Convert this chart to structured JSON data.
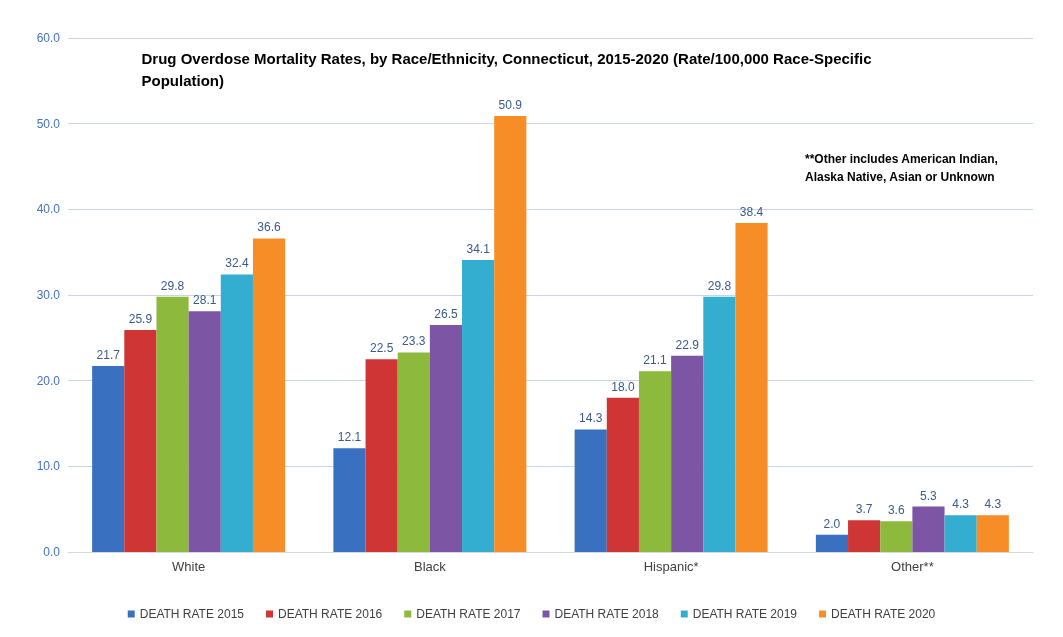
{
  "chart_data": {
    "type": "bar",
    "title": "Drug Overdose Mortality Rates, by Race/Ethnicity, Connecticut, 2015-2020 (Rate/100,000 Race-Specific Population)",
    "annotations": [
      "**Other includes American Indian, Alaska Native, Asian or Unknown"
    ],
    "categories": [
      "White",
      "Black",
      "Hispanic*",
      "Other**"
    ],
    "series": [
      {
        "name": "DEATH RATE 2015",
        "color": "#3a70c0",
        "values": [
          21.7,
          12.1,
          14.3,
          2.0
        ],
        "value_labels": [
          "21.7",
          "12.1",
          "14.3",
          "2.0"
        ]
      },
      {
        "name": "DEATH RATE 2016",
        "color": "#d03535",
        "values": [
          25.9,
          22.5,
          18.0,
          3.7
        ],
        "value_labels": [
          "25.9",
          "22.5",
          "18.0",
          "3.7"
        ]
      },
      {
        "name": "DEATH RATE 2017",
        "color": "#8dba3c",
        "values": [
          29.8,
          23.3,
          21.1,
          3.6
        ],
        "value_labels": [
          "29.8",
          "23.3",
          "21.1",
          "3.6"
        ]
      },
      {
        "name": "DEATH RATE 2018",
        "color": "#7d55a5",
        "values": [
          28.1,
          26.5,
          22.9,
          5.3
        ],
        "value_labels": [
          "28.1",
          "26.5",
          "22.9",
          "5.3"
        ]
      },
      {
        "name": "DEATH RATE 2019",
        "color": "#33aed0",
        "values": [
          32.4,
          34.1,
          29.8,
          4.3
        ],
        "value_labels": [
          "32.4",
          "34.1",
          "29.8",
          "4.3"
        ]
      },
      {
        "name": "DEATH RATE 2020",
        "color": "#f68d27",
        "values": [
          36.6,
          50.9,
          38.4,
          4.3
        ],
        "value_labels": [
          "36.6",
          "50.9",
          "38.4",
          "4.3"
        ]
      }
    ],
    "ylim": [
      0,
      60
    ],
    "yticks": [
      {
        "value": 0,
        "label": "0.0"
      },
      {
        "value": 10,
        "label": "10.0"
      },
      {
        "value": 20,
        "label": "20.0"
      },
      {
        "value": 30,
        "label": "30.0"
      },
      {
        "value": 40,
        "label": "40.0"
      },
      {
        "value": 50,
        "label": "50.0"
      },
      {
        "value": 60,
        "label": "60.0"
      }
    ],
    "grid": "y",
    "legend": "bottom"
  }
}
